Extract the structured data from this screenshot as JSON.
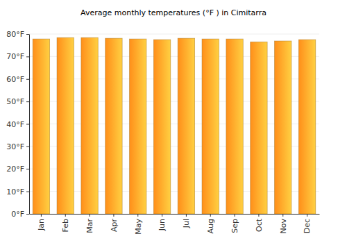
{
  "chart_data": {
    "type": "bar",
    "title": "Average monthly temperatures (°F ) in Cimitarra",
    "categories": [
      "Jan",
      "Feb",
      "Mar",
      "Apr",
      "May",
      "Jun",
      "Jul",
      "Aug",
      "Sep",
      "Oct",
      "Nov",
      "Dec"
    ],
    "values": [
      77.8,
      78.4,
      78.4,
      78.1,
      77.8,
      77.5,
      78.1,
      77.8,
      77.8,
      76.5,
      76.9,
      77.5
    ],
    "color": "#ffb22e",
    "ylim": [
      0,
      80
    ],
    "yticks": [
      {
        "value": 0,
        "label": "0°F"
      },
      {
        "value": 10,
        "label": "10°F"
      },
      {
        "value": 20,
        "label": "20°F"
      },
      {
        "value": 30,
        "label": "30°F"
      },
      {
        "value": 40,
        "label": "40°F"
      },
      {
        "value": 50,
        "label": "50°F"
      },
      {
        "value": 60,
        "label": "60°F"
      },
      {
        "value": 70,
        "label": "70°F"
      },
      {
        "value": 80,
        "label": "80°F"
      }
    ],
    "grid": true
  }
}
